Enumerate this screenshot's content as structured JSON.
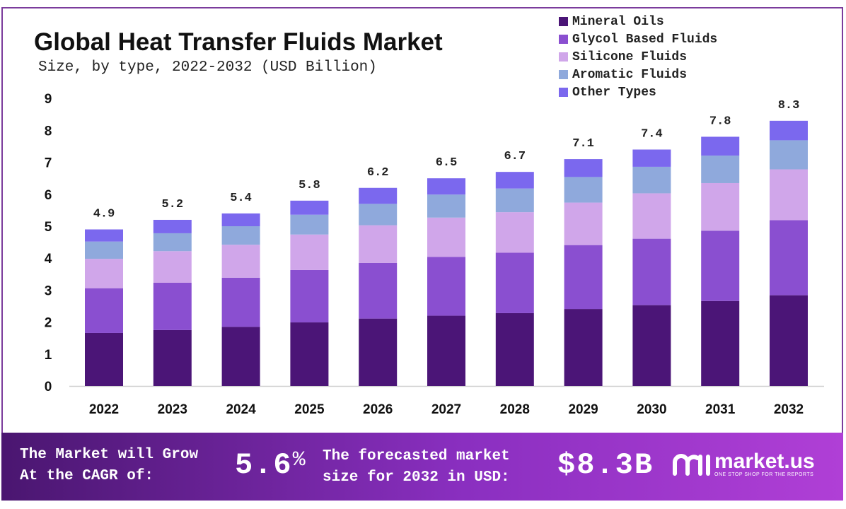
{
  "title": "Global Heat Transfer Fluids Market",
  "subtitle": "Size, by type, 2022-2032 (USD Billion)",
  "chart_data": {
    "type": "bar",
    "stacked": true,
    "title": "Global Heat Transfer Fluids Market",
    "subtitle": "Size, by type, 2022-2032 (USD Billion)",
    "xlabel": "",
    "ylabel": "",
    "ylim": [
      0,
      9
    ],
    "yticks": [
      0,
      1,
      2,
      3,
      4,
      5,
      6,
      7,
      8,
      9
    ],
    "grid": false,
    "legend_position": "top-right",
    "categories": [
      "2022",
      "2023",
      "2024",
      "2025",
      "2026",
      "2027",
      "2028",
      "2029",
      "2030",
      "2031",
      "2032"
    ],
    "series": [
      {
        "name": "Mineral Oils",
        "color": "#4b1577",
        "values": [
          1.66,
          1.75,
          1.85,
          1.99,
          2.11,
          2.2,
          2.28,
          2.41,
          2.53,
          2.66,
          2.84
        ]
      },
      {
        "name": "Glycol Based Fluids",
        "color": "#8a4fd0",
        "values": [
          1.4,
          1.48,
          1.54,
          1.64,
          1.74,
          1.84,
          1.89,
          2.0,
          2.08,
          2.2,
          2.35
        ]
      },
      {
        "name": "Silicone Fluids",
        "color": "#d0a6ea",
        "values": [
          0.92,
          0.99,
          1.03,
          1.11,
          1.18,
          1.23,
          1.27,
          1.33,
          1.42,
          1.49,
          1.59
        ]
      },
      {
        "name": "Aromatic Fluids",
        "color": "#8fa9dc",
        "values": [
          0.54,
          0.56,
          0.58,
          0.62,
          0.67,
          0.72,
          0.74,
          0.8,
          0.83,
          0.86,
          0.91
        ]
      },
      {
        "name": "Other Types",
        "color": "#7b68ee",
        "values": [
          0.38,
          0.42,
          0.4,
          0.44,
          0.5,
          0.51,
          0.52,
          0.56,
          0.54,
          0.59,
          0.61
        ]
      }
    ],
    "totals": [
      "4.9",
      "5.2",
      "5.4",
      "5.8",
      "6.2",
      "6.5",
      "6.7",
      "7.1",
      "7.4",
      "7.8",
      "8.3"
    ]
  },
  "footer": {
    "cagr_text_line1": "The Market will Grow",
    "cagr_text_line2": "At the CAGR of:",
    "cagr_value": "5.6",
    "cagr_unit": "%",
    "forecast_text_line1": "The forecasted market",
    "forecast_text_line2": "size for 2032 in USD:",
    "forecast_value": "$8.3B",
    "brand_name": "market.us",
    "brand_tagline": "ONE STOP SHOP FOR THE REPORTS"
  }
}
